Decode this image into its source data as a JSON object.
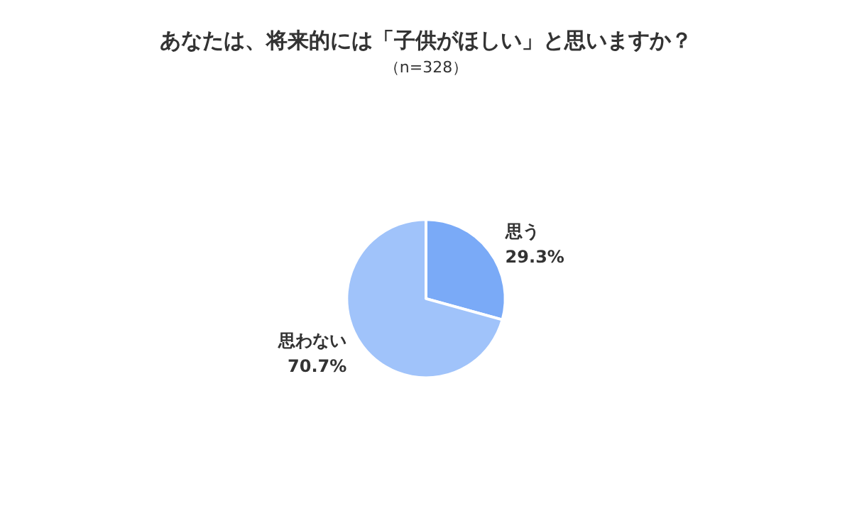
{
  "chart_data": {
    "type": "pie",
    "title": "あなたは、将来的には「子供がほしい」と思いますか？",
    "subtitle": "（n=328）",
    "categories": [
      "思う",
      "思わない"
    ],
    "values": [
      29.3,
      70.7
    ],
    "value_labels": [
      "29.3%",
      "70.7%"
    ],
    "colors": [
      "#7aaaf7",
      "#a0c3fa"
    ],
    "legend": false
  }
}
